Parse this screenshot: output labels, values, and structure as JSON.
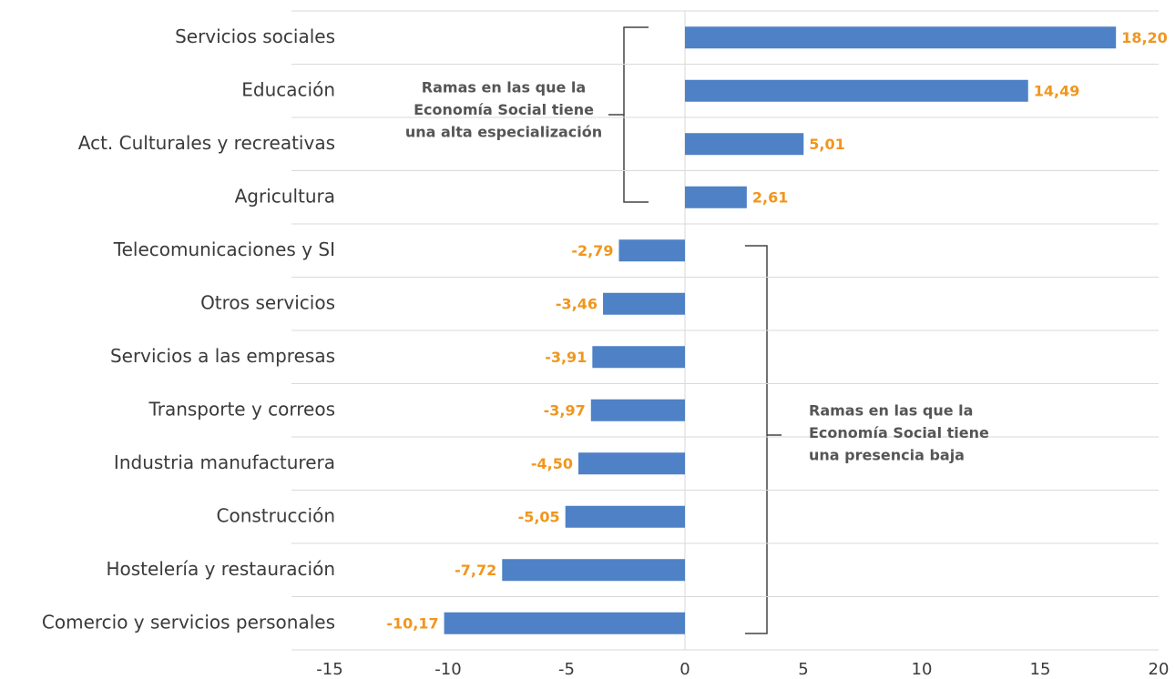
{
  "chart_data": {
    "type": "bar",
    "orientation": "horizontal",
    "categories": [
      "Servicios sociales",
      "Educación",
      "Act. Culturales y recreativas",
      "Agricultura",
      "Telecomunicaciones y SI",
      "Otros servicios",
      "Servicios a las empresas",
      "Transporte y correos",
      "Industria manufacturera",
      "Construcción",
      "Hostelería y restauración",
      "Comercio y servicios personales"
    ],
    "values": [
      18.2,
      14.49,
      5.01,
      2.61,
      -2.79,
      -3.46,
      -3.91,
      -3.97,
      -4.5,
      -5.05,
      -7.72,
      -10.17
    ],
    "value_labels": [
      "18,20",
      "14,49",
      "5,01",
      "2,61",
      "-2,79",
      "-3,46",
      "-3,91",
      "-3,97",
      "-4,50",
      "-5,05",
      "-7,72",
      "-10,17"
    ],
    "color": "#4f81c6",
    "label_color": "#f0961e",
    "xlim": [
      -15,
      20
    ],
    "xticks": [
      -15,
      -10,
      -5,
      0,
      5,
      10,
      15,
      20
    ],
    "grid": true,
    "annotations": [
      [
        "Ramas en las que la",
        "Economía Social tiene",
        "una alta especialización"
      ],
      [
        "Ramas en las que la",
        "Economía Social tiene",
        "una presencia baja"
      ]
    ]
  }
}
